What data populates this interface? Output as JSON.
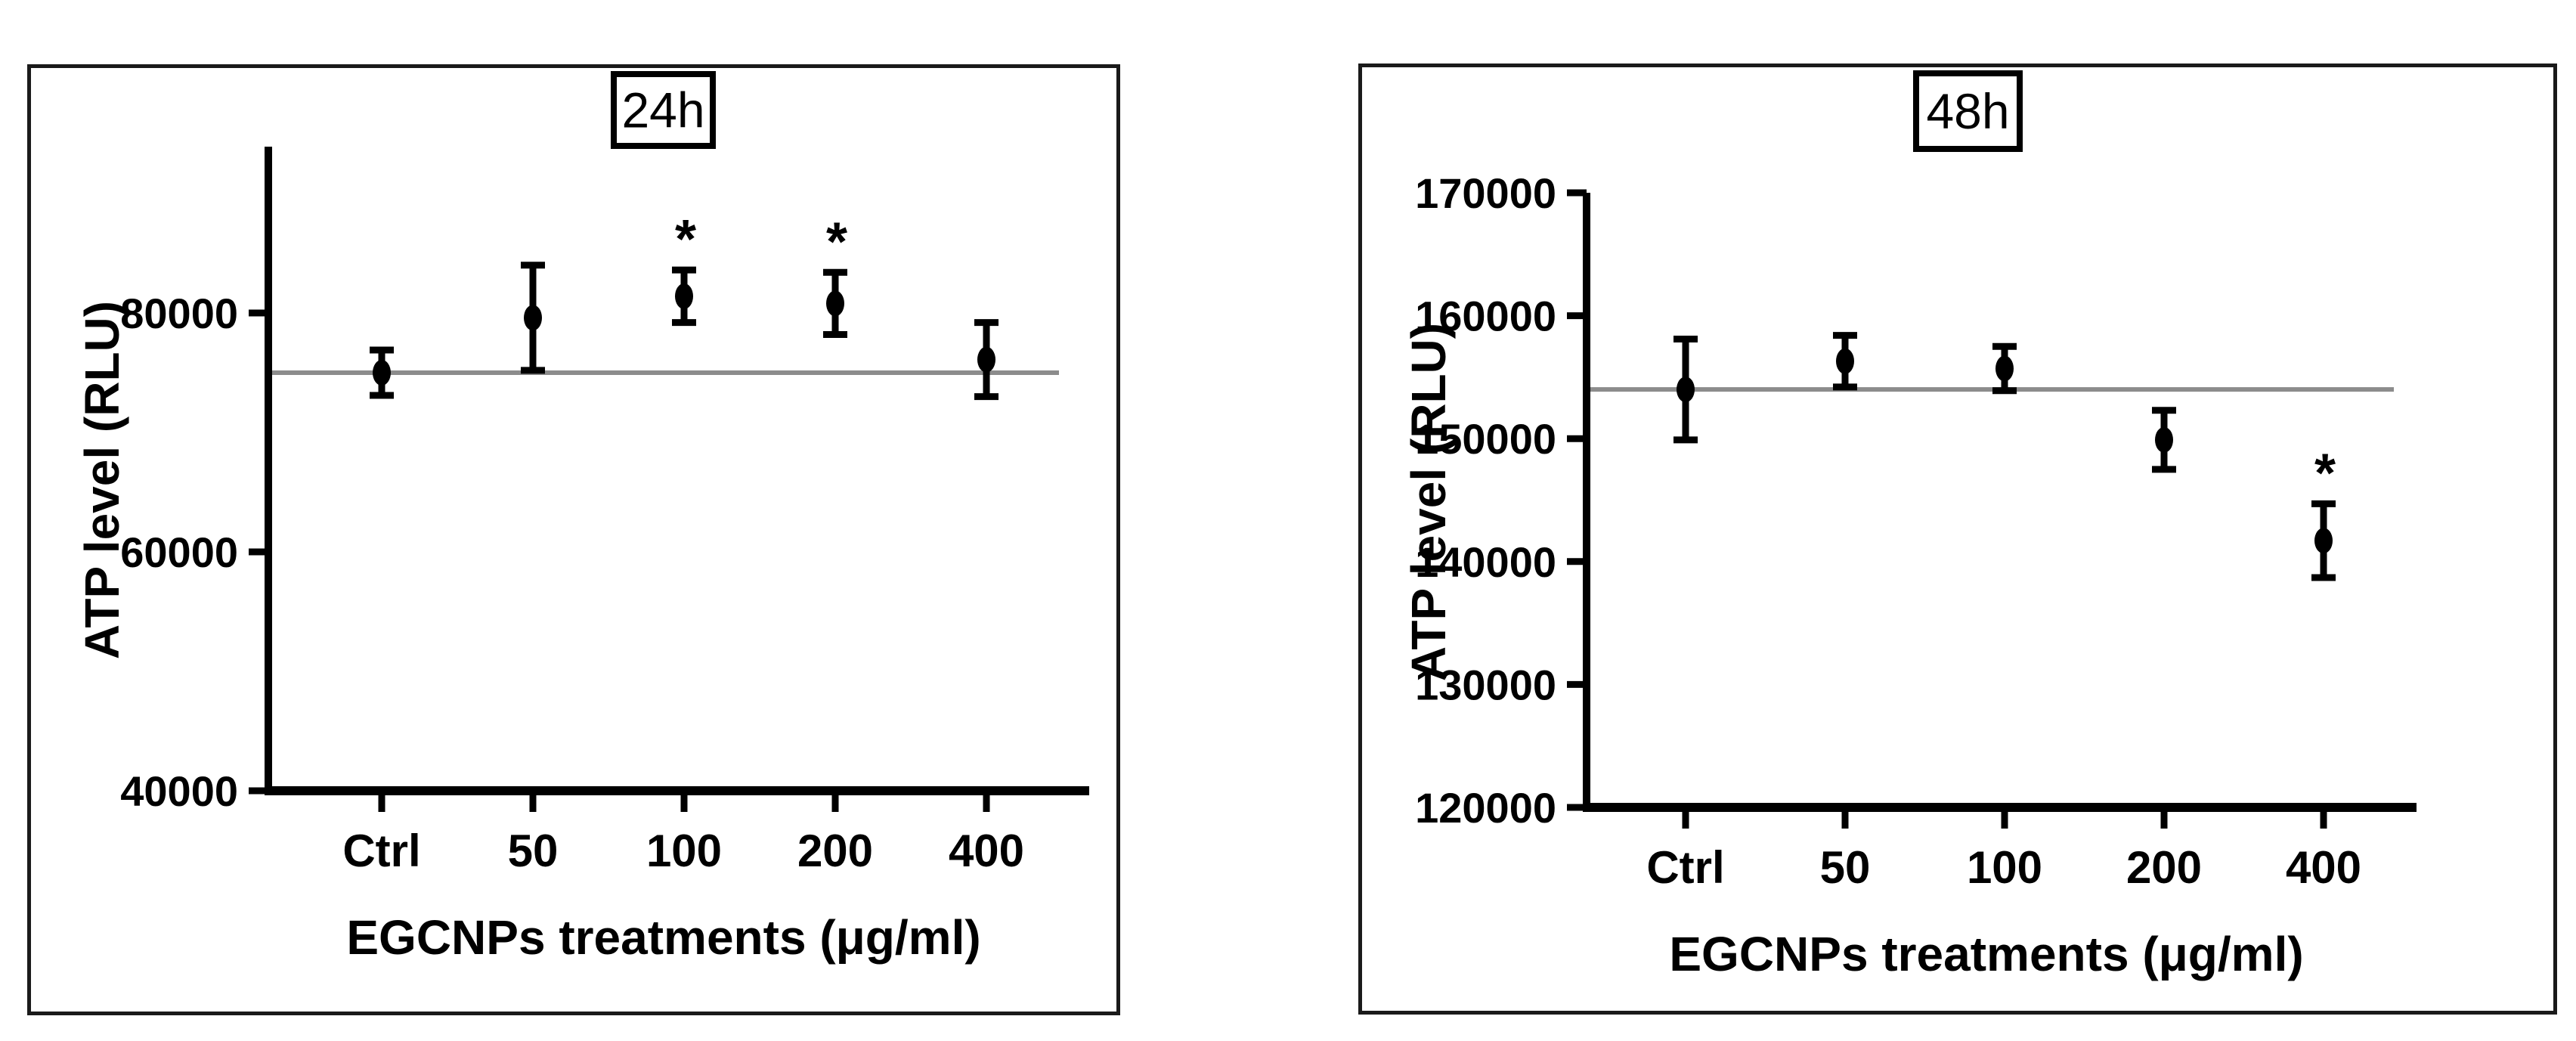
{
  "figure": {
    "background": "#ffffff",
    "description": "Two-panel dot plot of ATP level (RLU) versus EGCNPs treatment concentration at 24h and 48h, mean with error bars, horizontal reference line at control mean, asterisks mark significant points"
  },
  "colors": {
    "axis": "#000000",
    "marker": "#000000",
    "error_bar": "#000000",
    "reference_line": "#8c8c8c",
    "panel_border": "#1a1a1a",
    "text": "#000000",
    "title_box_border": "#000000",
    "title_box_fill": "#ffffff"
  },
  "significance_marker": "*",
  "chart_data": [
    {
      "type": "scatter",
      "subtype": "mean-with-error-bars",
      "panel_title": "24h",
      "panel_title_boxed": true,
      "xlabel": "EGCNPs treatments (μg/ml)",
      "ylabel": "ATP level (RLU)",
      "categories": [
        "Ctrl",
        "50",
        "100",
        "200",
        "400"
      ],
      "series": [
        {
          "name": "ATP level 24h",
          "values": [
            75000,
            79600,
            81400,
            80800,
            76100
          ],
          "errors": [
            1900,
            4400,
            2200,
            2600,
            3100
          ],
          "significance": [
            "",
            "",
            "*",
            "*",
            ""
          ]
        }
      ],
      "reference_line": 75000,
      "ylim": [
        40000,
        93900
      ],
      "yticks": [
        40000,
        60000,
        80000
      ],
      "ytick_labels": [
        "40000",
        "60000",
        "80000"
      ],
      "grid": false,
      "legend": null
    },
    {
      "type": "scatter",
      "subtype": "mean-with-error-bars",
      "panel_title": "48h",
      "panel_title_boxed": true,
      "xlabel": "EGCNPs treatments (μg/ml)",
      "ylabel": "ATP level (RLU)",
      "categories": [
        "Ctrl",
        "50",
        "100",
        "200",
        "400"
      ],
      "series": [
        {
          "name": "ATP level 48h",
          "values": [
            154000,
            156300,
            155700,
            149900,
            141700
          ],
          "errors": [
            4100,
            2100,
            1800,
            2400,
            3000
          ],
          "significance": [
            "",
            "",
            "",
            "",
            "*"
          ]
        }
      ],
      "reference_line": 154000,
      "ylim": [
        120000,
        170000
      ],
      "yticks": [
        120000,
        130000,
        140000,
        150000,
        160000,
        170000
      ],
      "ytick_labels": [
        "120000",
        "130000",
        "140000",
        "150000",
        "160000",
        "170000"
      ],
      "grid": false,
      "legend": null
    }
  ]
}
